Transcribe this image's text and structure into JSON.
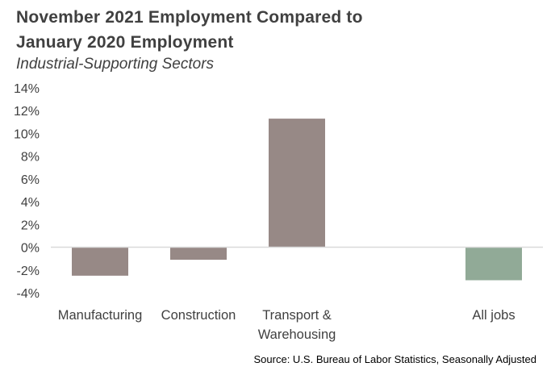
{
  "chart_data": {
    "type": "bar",
    "title_line1": "November 2021 Employment Compared to",
    "title_line2": "January 2020 Employment",
    "subtitle": "Industrial-Supporting  Sectors",
    "categories": [
      [
        "Manufacturing"
      ],
      [
        "Construction"
      ],
      [
        "Transport &",
        "Warehousing"
      ],
      [
        ""
      ],
      [
        "All jobs"
      ]
    ],
    "values": [
      -2.5,
      -1.1,
      11.3,
      null,
      -2.9
    ],
    "bar_colors": [
      "#978986",
      "#978986",
      "#978986",
      null,
      "#91aa97"
    ],
    "ylim": [
      -4,
      14
    ],
    "yticks": [
      -4,
      -2,
      0,
      2,
      4,
      6,
      8,
      10,
      12,
      14
    ],
    "ytick_labels": [
      "-4%",
      "-2%",
      "0%",
      "2%",
      "4%",
      "6%",
      "8%",
      "10%",
      "12%",
      "14%"
    ],
    "axis_color": "#d9d9d9",
    "xlabel": "",
    "ylabel": "",
    "grid": false
  },
  "source": "Source: U.S. Bureau of Labor Statistics, Seasonally Adjusted"
}
